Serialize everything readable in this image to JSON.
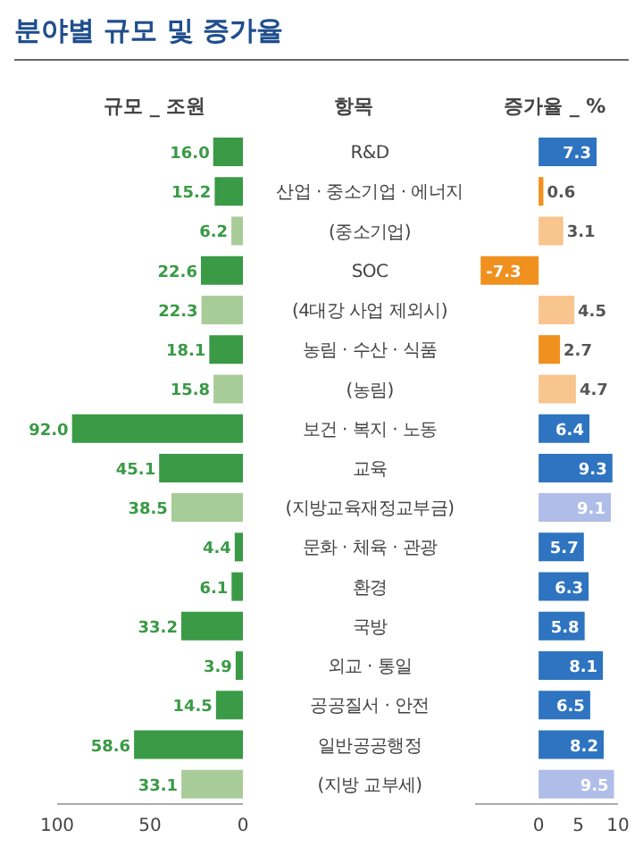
{
  "chart_data": [
    {
      "type": "bar",
      "orientation": "horizontal",
      "title": "분야별 규모 및 증가율",
      "subtitle": "규모 _ 조원",
      "ylabel": "항목",
      "categories": [
        "R&D",
        "산업 · 중소기업 · 에너지",
        "(중소기업)",
        "SOC",
        "(4대강 사업 제외시)",
        "농림 · 수산 · 식품",
        "(농림)",
        "보건 · 복지 · 노동",
        "교육",
        "(지방교육재정교부금)",
        "문화 · 체육 · 관광",
        "환경",
        "국방",
        "외교 · 통일",
        "공공질서 · 안전",
        "일반공공행정",
        "(지방 교부세)"
      ],
      "values": [
        16.0,
        15.2,
        6.2,
        22.6,
        22.3,
        18.1,
        15.8,
        92.0,
        45.1,
        38.5,
        4.4,
        6.1,
        33.2,
        3.9,
        14.5,
        58.6,
        33.1
      ],
      "value_labels": [
        "16.0",
        "15.2",
        "6.2",
        "22.6",
        "22.3",
        "18.1",
        "15.8",
        "92.0",
        "45.1",
        "38.5",
        "4.4",
        "6.1",
        "33.2",
        "3.9",
        "14.5",
        "58.6",
        "33.1"
      ],
      "colors": [
        "#3a9a46",
        "#3a9a46",
        "#a8cc98",
        "#3a9a46",
        "#a8cc98",
        "#3a9a46",
        "#a8cc98",
        "#3a9a46",
        "#3a9a46",
        "#a8cc98",
        "#3a9a46",
        "#3a9a46",
        "#3a9a46",
        "#3a9a46",
        "#3a9a46",
        "#3a9a46",
        "#a8cc98"
      ],
      "xlim": [
        100,
        0
      ],
      "xticks": [
        0,
        50,
        100
      ]
    },
    {
      "type": "bar",
      "orientation": "horizontal",
      "subtitle": "증가율 _ %",
      "values": [
        7.3,
        0.6,
        3.1,
        -7.3,
        4.5,
        2.7,
        4.7,
        6.4,
        9.3,
        9.1,
        5.7,
        6.3,
        5.8,
        8.1,
        6.5,
        8.2,
        9.5
      ],
      "value_labels": [
        "7.3",
        "0.6",
        "3.1",
        "-7.3",
        "4.5",
        "2.7",
        "4.7",
        "6.4",
        "9.3",
        "9.1",
        "5.7",
        "6.3",
        "5.8",
        "8.1",
        "6.5",
        "8.2",
        "9.5"
      ],
      "colors": [
        "#2e74c0",
        "#f0901e",
        "#f8c58e",
        "#f0901e",
        "#f8c58e",
        "#f0901e",
        "#f8c58e",
        "#2e74c0",
        "#2e74c0",
        "#b0bde8",
        "#2e74c0",
        "#2e74c0",
        "#2e74c0",
        "#2e74c0",
        "#2e74c0",
        "#2e74c0",
        "#b0bde8"
      ],
      "xlim": [
        -8,
        10
      ],
      "xticks": [
        0,
        5,
        10
      ]
    }
  ]
}
